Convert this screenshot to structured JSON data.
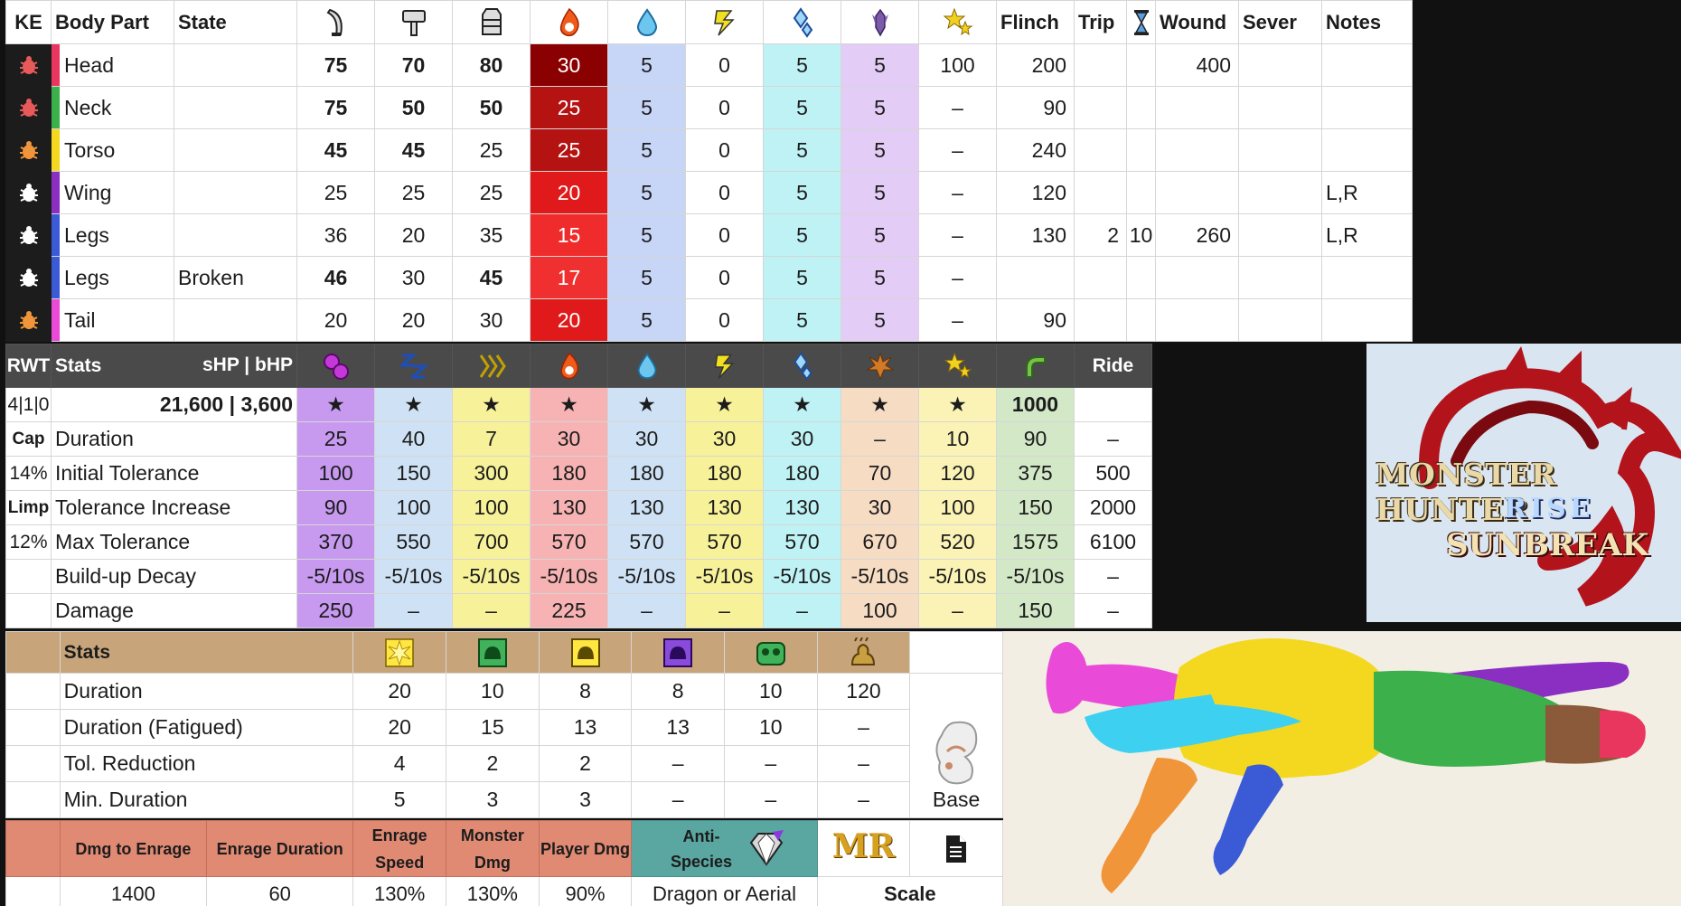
{
  "hitzones": {
    "headers": {
      "ke": "KE",
      "body_part": "Body Part",
      "state": "State",
      "cut_icon": "sever-icon",
      "blunt_icon": "hammer-icon",
      "shot_icon": "bowgun-icon",
      "fire_icon": "fire-icon",
      "water_icon": "water-icon",
      "thunder_icon": "thunder-icon",
      "ice_icon": "ice-icon",
      "dragon_icon": "dragon-icon",
      "stun_icon": "stun-icon",
      "flinch": "Flinch",
      "trip": "Trip",
      "timer_icon": "hourglass-icon",
      "wound": "Wound",
      "sever": "Sever",
      "notes": "Notes"
    },
    "rows": [
      {
        "ke_color": "#e85a5a",
        "part": "Head",
        "part_color": "#e8365f",
        "state": "",
        "cut": "75",
        "blunt": "70",
        "shot": "80",
        "fire": "30",
        "water": "5",
        "thunder": "0",
        "ice": "5",
        "dragon": "5",
        "stun": "100",
        "flinch": "200",
        "trip": "",
        "timer": "",
        "wound": "400",
        "sever": "",
        "notes": ""
      },
      {
        "ke_color": "#e85a5a",
        "part": "Neck",
        "part_color": "#3cb14b",
        "state": "",
        "cut": "75",
        "blunt": "50",
        "shot": "50",
        "fire": "25",
        "water": "5",
        "thunder": "0",
        "ice": "5",
        "dragon": "5",
        "stun": "–",
        "flinch": "90",
        "trip": "",
        "timer": "",
        "wound": "",
        "sever": "",
        "notes": ""
      },
      {
        "ke_color": "#f0953a",
        "part": "Torso",
        "part_color": "#f4d820",
        "state": "",
        "cut": "45",
        "blunt": "45",
        "shot": "25",
        "fire": "25",
        "water": "5",
        "thunder": "0",
        "ice": "5",
        "dragon": "5",
        "stun": "–",
        "flinch": "240",
        "trip": "",
        "timer": "",
        "wound": "",
        "sever": "",
        "notes": ""
      },
      {
        "ke_color": "#ffffff",
        "part": "Wing",
        "part_color": "#8b2ec2",
        "state": "",
        "cut": "25",
        "blunt": "25",
        "shot": "25",
        "fire": "20",
        "water": "5",
        "thunder": "0",
        "ice": "5",
        "dragon": "5",
        "stun": "–",
        "flinch": "120",
        "trip": "",
        "timer": "",
        "wound": "",
        "sever": "",
        "notes": "L,R"
      },
      {
        "ke_color": "#ffffff",
        "part": "Legs",
        "part_color": "#3a5ad6",
        "state": "",
        "cut": "36",
        "blunt": "20",
        "shot": "35",
        "fire": "15",
        "water": "5",
        "thunder": "0",
        "ice": "5",
        "dragon": "5",
        "stun": "–",
        "flinch": "130",
        "trip": "2",
        "timer": "10",
        "wound": "260",
        "sever": "",
        "notes": "L,R"
      },
      {
        "ke_color": "#ffffff",
        "part": "Legs",
        "part_color": "#3a5ad6",
        "state": "Broken",
        "cut": "46",
        "blunt": "30",
        "shot": "45",
        "fire": "17",
        "water": "5",
        "thunder": "0",
        "ice": "5",
        "dragon": "5",
        "stun": "–",
        "flinch": "",
        "trip": "",
        "timer": "",
        "wound": "",
        "sever": "",
        "notes": ""
      },
      {
        "ke_color": "#f0953a",
        "part": "Tail",
        "part_color": "#e94bd8",
        "state": "",
        "cut": "20",
        "blunt": "20",
        "shot": "30",
        "fire": "20",
        "water": "5",
        "thunder": "0",
        "ice": "5",
        "dragon": "5",
        "stun": "–",
        "flinch": "90",
        "trip": "",
        "timer": "",
        "wound": "",
        "sever": "",
        "notes": ""
      }
    ]
  },
  "status": {
    "headers": {
      "rwt": "RWT",
      "stats": "Stats",
      "hp": "sHP  |  bHP",
      "ride": "Ride",
      "icons": [
        "poison-icon",
        "sleep-icon",
        "paralysis-icon",
        "fire-icon",
        "water-icon",
        "thunder-icon",
        "ice-icon",
        "blast-icon",
        "stun-icon",
        "exhaust-icon"
      ]
    },
    "hp_row": {
      "side": "4|1|0",
      "hp": "21,600 | 3,600",
      "stars": [
        "★",
        "★",
        "★",
        "★",
        "★",
        "★",
        "★",
        "★",
        "★",
        "1000"
      ],
      "ride": ""
    },
    "rows": [
      {
        "side": "Cap",
        "label": "Duration",
        "values": [
          "25",
          "40",
          "7",
          "30",
          "30",
          "30",
          "30",
          "–",
          "10",
          "90"
        ],
        "ride": "–"
      },
      {
        "side": "14%",
        "label": "Initial Tolerance",
        "values": [
          "100",
          "150",
          "300",
          "180",
          "180",
          "180",
          "180",
          "70",
          "120",
          "375"
        ],
        "ride": "500"
      },
      {
        "side": "Limp",
        "label": "Tolerance Increase",
        "values": [
          "90",
          "100",
          "100",
          "130",
          "130",
          "130",
          "130",
          "30",
          "100",
          "150"
        ],
        "ride": "2000"
      },
      {
        "side": "12%",
        "label": "Max Tolerance",
        "values": [
          "370",
          "550",
          "700",
          "570",
          "570",
          "570",
          "570",
          "670",
          "520",
          "1575"
        ],
        "ride": "6100"
      },
      {
        "side": "",
        "label": "Build-up Decay",
        "values": [
          "-5/10s",
          "-5/10s",
          "-5/10s",
          "-5/10s",
          "-5/10s",
          "-5/10s",
          "-5/10s",
          "-5/10s",
          "-5/10s",
          "-5/10s"
        ],
        "ride": "–"
      },
      {
        "side": "",
        "label": "Damage",
        "values": [
          "250",
          "–",
          "–",
          "225",
          "–",
          "–",
          "–",
          "100",
          "–",
          "150"
        ],
        "ride": "–"
      }
    ]
  },
  "items": {
    "headers": {
      "stats": "Stats",
      "icons": [
        "flash-trap-icon",
        "pitfall-trap-icon",
        "shock-trap-icon",
        "sleep-trap-icon",
        "pitfall-trap-green-icon",
        "dung-bomb-icon"
      ]
    },
    "rows": [
      {
        "label": "Duration",
        "values": [
          "20",
          "10",
          "8",
          "8",
          "10",
          "120"
        ]
      },
      {
        "label": "Duration (Fatigued)",
        "values": [
          "20",
          "15",
          "13",
          "13",
          "10",
          "–"
        ]
      },
      {
        "label": "Tol. Reduction",
        "values": [
          "4",
          "2",
          "2",
          "–",
          "–",
          "–"
        ]
      },
      {
        "label": "Min. Duration",
        "values": [
          "5",
          "3",
          "3",
          "–",
          "–",
          "–"
        ]
      }
    ],
    "base_label": "Base"
  },
  "enrage": {
    "headers": [
      "Dmg to Enrage",
      "Enrage Duration",
      "Enrage Speed",
      "Monster Dmg",
      "Player Dmg"
    ],
    "values": [
      "1400",
      "60",
      "130%",
      "130%",
      "90%"
    ],
    "anti_species_label": "Anti-Species",
    "anti_species_value": "Dragon or Aerial",
    "mr_label": "MR",
    "scale_label": "Scale"
  },
  "logo": {
    "line1": "MONSTER HUNTER",
    "line2": "RISE",
    "line3": "SUNBREAK"
  },
  "colors": {
    "fire_shades": [
      "#8b0000",
      "#b51212",
      "#b51212",
      "#e01a1a",
      "#f02b2b",
      "#f03030",
      "#e01a1a"
    ],
    "water": "#c7d6f7",
    "ice": "#bff2f5",
    "dragon": "#e3ccf5",
    "poison": "#c79af0",
    "sleep": "#cfe2f5",
    "para": "#f7f29a",
    "fire": "#f7b3b3",
    "water2": "#cfe2f5",
    "thunder": "#f7f29a",
    "ice2": "#bff2f5",
    "blast": "#f7dcc4",
    "stun": "#fbf3b6",
    "exhaust": "#d2e8c7"
  }
}
